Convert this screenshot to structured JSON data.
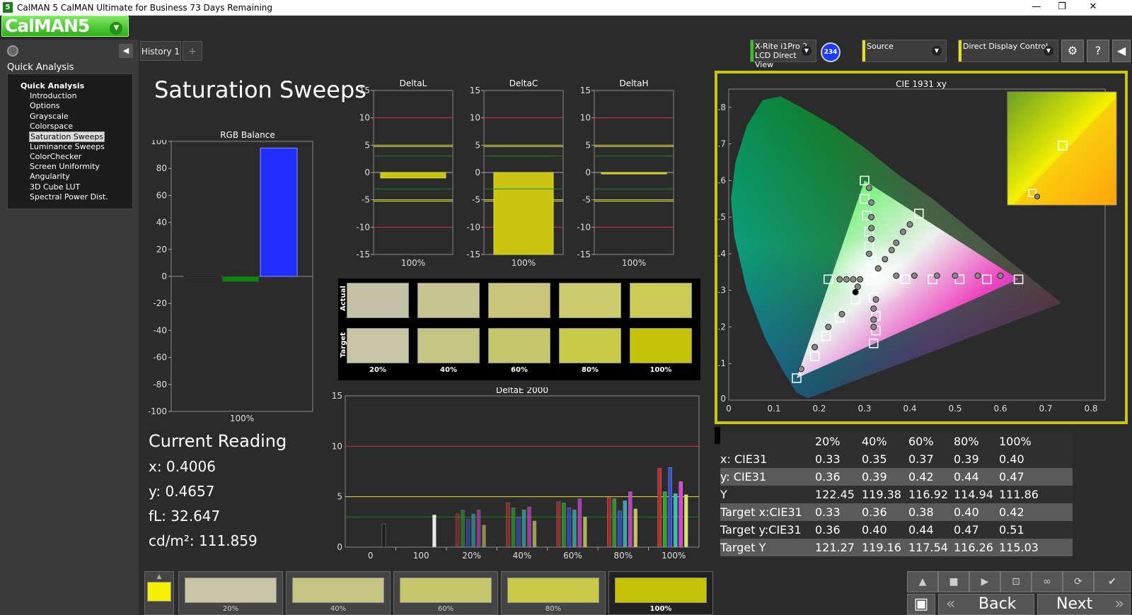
{
  "window": {
    "title": "CalMAN 5 CalMAN Ultimate for Business 73 Days Remaining",
    "app_icon": "5",
    "minimize": "—",
    "maximize": "❐",
    "close": "✕"
  },
  "logo": {
    "text": "CalMAN5",
    "caret": "▼"
  },
  "left_panel": {
    "heading": "Quick Analysis",
    "tree_root": "Quick Analysis",
    "items": [
      {
        "label": "Introduction"
      },
      {
        "label": "Options"
      },
      {
        "label": "Grayscale"
      },
      {
        "label": "Colorspace"
      },
      {
        "label": "Saturation Sweeps",
        "selected": true
      },
      {
        "label": "Luminance Sweeps"
      },
      {
        "label": "ColorChecker"
      },
      {
        "label": "Screen Uniformity"
      },
      {
        "label": "Angularity"
      },
      {
        "label": "3D Cube LUT"
      },
      {
        "label": "Spectral Power Dist."
      }
    ]
  },
  "tabs": {
    "history": "History 1",
    "add": "+"
  },
  "toolbar": {
    "meter_line1": "X-Rite i1Pro 2",
    "meter_line2": "LCD Direct View",
    "badge": "234",
    "source": "Source",
    "display": "Direct Display Control",
    "settings_icon": "⚙",
    "help_icon": "?",
    "collapse_icon": "◀"
  },
  "main": {
    "title": "Saturation Sweeps"
  },
  "rgb_balance": {
    "title": "RGB Balance",
    "ylim": [
      -100,
      100
    ],
    "ticks": [
      "100",
      "80",
      "60",
      "40",
      "20",
      "0",
      "-20",
      "-40",
      "-60",
      "-80",
      "-100"
    ],
    "xlabel": "100%",
    "bars": [
      {
        "name": "red",
        "value": -0.5,
        "color": "#111111"
      },
      {
        "name": "green",
        "value": -4,
        "color": "#0a8a0a"
      },
      {
        "name": "blue",
        "value": 95,
        "color": "#1f2fff"
      }
    ]
  },
  "delta_charts": [
    {
      "title": "DeltaL",
      "value": -1,
      "xlabel": "100%",
      "ticks": [
        "15",
        "10",
        "5",
        "0",
        "-5",
        "-10",
        "-15"
      ]
    },
    {
      "title": "DeltaC",
      "value": -15,
      "xlabel": "100%",
      "ticks": [
        "15",
        "10",
        "5",
        "0",
        "-5",
        "-10",
        "-15"
      ]
    },
    {
      "title": "DeltaH",
      "value": 0,
      "xlabel": "100%",
      "ticks": [
        "15",
        "10",
        "5",
        "0",
        "-5",
        "-10",
        "-15"
      ]
    }
  ],
  "swatches": {
    "row_actual": "Actual",
    "row_target": "Target",
    "columns": [
      {
        "label": "20%",
        "actual": "#c3c2a6",
        "target": "#c6c6a6"
      },
      {
        "label": "40%",
        "actual": "#c6c491",
        "target": "#c5c483"
      },
      {
        "label": "60%",
        "actual": "#c9c67c",
        "target": "#c6c66d"
      },
      {
        "label": "80%",
        "actual": "#cccb6d",
        "target": "#c8c849"
      },
      {
        "label": "100%",
        "actual": "#cccb56",
        "target": "#c5c306"
      }
    ]
  },
  "deltae": {
    "title": "DeltaE 2000",
    "yticks": [
      "15",
      "10",
      "5",
      "0"
    ],
    "xticks": [
      "0",
      "100",
      "20%",
      "40%",
      "60%",
      "80%",
      "100%"
    ],
    "groups": [
      {
        "label": "0",
        "values": [
          2.3
        ]
      },
      {
        "label": "100",
        "values": [
          3.2
        ]
      },
      {
        "label": "20%",
        "values": [
          3.3,
          3.7,
          2.8,
          3.3,
          3.7,
          2.2
        ]
      },
      {
        "label": "40%",
        "values": [
          4.4,
          3.9,
          3.0,
          3.7,
          4.0,
          2.6
        ]
      },
      {
        "label": "60%",
        "values": [
          4.5,
          4.4,
          3.9,
          3.7,
          4.8,
          3.0
        ]
      },
      {
        "label": "80%",
        "values": [
          4.9,
          4.8,
          3.6,
          4.6,
          5.5,
          3.8
        ]
      },
      {
        "label": "100%",
        "values": [
          7.8,
          5.5,
          7.9,
          5.3,
          6.5,
          5.2
        ]
      }
    ]
  },
  "current_reading": {
    "heading": "Current Reading",
    "x": "x: 0.4006",
    "y": "y: 0.4657",
    "fl": "fL: 32.647",
    "cdm": "cd/m²: 111.859"
  },
  "cie": {
    "title": "CIE 1931 xy",
    "xticks": [
      "0",
      "0.1",
      "0.2",
      "0.3",
      "0.4",
      "0.5",
      "0.6",
      "0.7",
      "0.8"
    ],
    "yticks": [
      "0",
      "0.1",
      "0.2",
      "0.3",
      "0.4",
      "0.5",
      "0.6",
      "0.7",
      "0.8"
    ]
  },
  "table": {
    "headers": [
      "",
      "20%",
      "40%",
      "60%",
      "80%",
      "100%"
    ],
    "rows": [
      {
        "label": "x: CIE31",
        "values": [
          "0.33",
          "0.35",
          "0.37",
          "0.39",
          "0.40"
        ]
      },
      {
        "label": "y: CIE31",
        "values": [
          "0.36",
          "0.39",
          "0.42",
          "0.44",
          "0.47"
        ]
      },
      {
        "label": "Y",
        "values": [
          "122.45",
          "119.38",
          "116.92",
          "114.94",
          "111.86"
        ]
      },
      {
        "label": "Target x:CIE31",
        "values": [
          "0.33",
          "0.36",
          "0.38",
          "0.40",
          "0.42"
        ]
      },
      {
        "label": "Target y:CIE31",
        "values": [
          "0.36",
          "0.40",
          "0.44",
          "0.47",
          "0.51"
        ]
      },
      {
        "label": "Target Y",
        "values": [
          "121.27",
          "119.16",
          "117.54",
          "116.26",
          "115.03"
        ]
      }
    ]
  },
  "bottom": {
    "current_color": "#f5f000",
    "patches": [
      {
        "label": "20%",
        "color": "#c6c6a6"
      },
      {
        "label": "40%",
        "color": "#c5c483"
      },
      {
        "label": "60%",
        "color": "#c6c66d"
      },
      {
        "label": "80%",
        "color": "#c8c849"
      },
      {
        "label": "100%",
        "color": "#c5c306",
        "active": true
      }
    ],
    "back": "Back",
    "next": "Next",
    "back_icon": "«",
    "next_icon": "»"
  }
}
